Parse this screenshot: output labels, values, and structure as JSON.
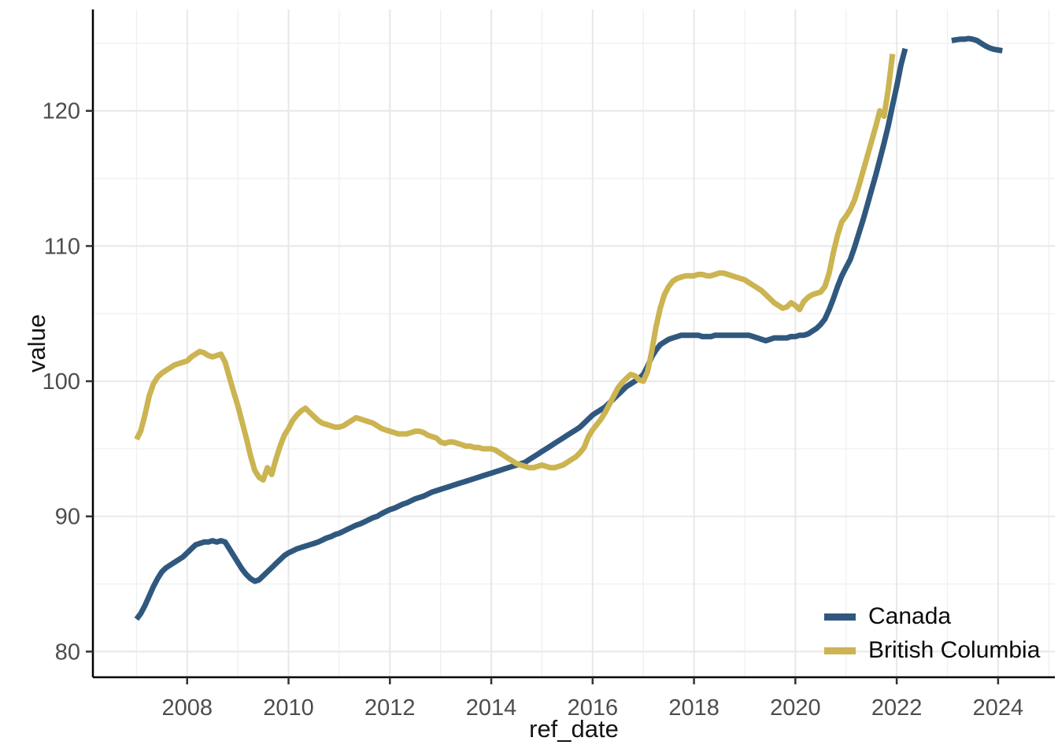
{
  "figure": {
    "background": "#FFFFFF",
    "panel_background": "#FFFFFF",
    "grid_major_color": "#E8E8E8",
    "grid_minor_color": "#F0F0F0",
    "axis_line_color": "#000000",
    "tick_mark_color": "#333333",
    "tick_label_color": "#4D4D4D",
    "title_color": "#141414"
  },
  "axes": {
    "x": {
      "title": "ref_date",
      "tick_labels": [
        "2008",
        "2010",
        "2012",
        "2014",
        "2016",
        "2018",
        "2020",
        "2022",
        "2024"
      ],
      "tick_values": [
        2008,
        2010,
        2012,
        2014,
        2016,
        2018,
        2020,
        2022,
        2024
      ],
      "minor_values": [
        2007,
        2009,
        2011,
        2013,
        2015,
        2017,
        2019,
        2021,
        2023,
        2025
      ]
    },
    "y": {
      "title": "value",
      "tick_labels": [
        "80",
        "90",
        "100",
        "110",
        "120"
      ],
      "tick_values": [
        80,
        90,
        100,
        110,
        120
      ],
      "minor_values": [
        85,
        95,
        105,
        115,
        125
      ]
    }
  },
  "legend": {
    "position": "inside bottom-right",
    "items": [
      {
        "label": "Canada",
        "color": "#30587F"
      },
      {
        "label": "British Columbia",
        "color": "#CBB451"
      }
    ]
  },
  "chart_data": {
    "type": "line",
    "title": "",
    "xlabel": "ref_date",
    "ylabel": "value",
    "x_domain": [
      2006.14,
      2025.12
    ],
    "y_domain": [
      78.1,
      127.5
    ],
    "grid": true,
    "x_unit": "monthly decimal years; each segment starts at start_year + (start_month-1)/12 and advances 1/12 per value",
    "legend_position": "inside bottom-right",
    "series": [
      {
        "name": "Canada",
        "color": "#30587F",
        "segments": [
          {
            "start_year": 2007,
            "start_month": 1,
            "values": [
              82.4,
              82.8,
              83.4,
              84.1,
              84.8,
              85.4,
              85.9,
              86.2,
              86.4,
              86.6,
              86.8,
              87.0,
              87.3,
              87.6,
              87.9,
              88.0,
              88.1,
              88.1,
              88.2,
              88.1,
              88.2,
              88.1,
              87.6,
              87.1,
              86.6,
              86.1,
              85.7,
              85.4,
              85.2,
              85.3,
              85.6,
              85.9,
              86.2,
              86.5,
              86.8,
              87.1,
              87.3,
              87.45,
              87.6,
              87.7,
              87.8,
              87.9,
              88.0,
              88.1,
              88.25,
              88.4,
              88.5,
              88.65,
              88.75,
              88.9,
              89.05,
              89.2,
              89.35,
              89.45,
              89.6,
              89.75,
              89.9,
              90.0,
              90.2,
              90.35,
              90.5,
              90.6,
              90.75,
              90.9,
              91.0,
              91.15,
              91.3,
              91.4,
              91.5,
              91.65,
              91.8,
              91.9,
              92.0,
              92.1,
              92.2,
              92.3,
              92.4,
              92.5,
              92.6,
              92.7,
              92.8,
              92.9,
              93.0,
              93.1,
              93.2,
              93.3,
              93.4,
              93.5,
              93.6,
              93.7,
              93.8,
              93.9,
              94.0,
              94.2,
              94.4,
              94.6,
              94.8,
              95.0,
              95.2,
              95.4,
              95.6,
              95.8,
              96.0,
              96.2,
              96.4,
              96.6,
              96.9,
              97.2,
              97.5,
              97.7,
              97.9,
              98.1,
              98.4,
              98.7,
              99.0,
              99.3,
              99.6,
              99.8,
              100.0,
              100.2,
              100.5,
              101.1,
              101.8,
              102.3,
              102.7,
              102.9,
              103.1,
              103.2,
              103.3,
              103.4,
              103.4,
              103.4,
              103.4,
              103.4,
              103.3,
              103.3,
              103.3,
              103.4,
              103.4,
              103.4,
              103.4,
              103.4,
              103.4,
              103.4,
              103.4,
              103.4,
              103.3,
              103.2,
              103.1,
              103.0,
              103.1,
              103.2,
              103.2,
              103.2,
              103.2,
              103.3,
              103.3,
              103.4,
              103.4,
              103.5,
              103.7,
              103.9,
              104.2,
              104.6,
              105.3,
              106.1,
              107.0,
              107.8,
              108.4,
              109.0,
              109.9,
              110.9,
              111.9,
              113.0,
              114.1,
              115.2,
              116.4,
              117.6,
              118.9,
              120.4,
              121.8,
              123.4,
              124.6
            ]
          },
          {
            "start_year": 2023,
            "start_month": 2,
            "values": [
              125.2,
              125.25,
              125.3,
              125.3,
              125.35,
              125.3,
              125.2,
              125.0,
              124.8,
              124.65,
              124.55,
              124.5,
              124.45
            ]
          }
        ]
      },
      {
        "name": "British Columbia",
        "color": "#CBB451",
        "segments": [
          {
            "start_year": 2007,
            "start_month": 1,
            "values": [
              95.7,
              96.3,
              97.5,
              98.9,
              99.8,
              100.3,
              100.6,
              100.8,
              101.0,
              101.2,
              101.3,
              101.4,
              101.5,
              101.8,
              102.0,
              102.2,
              102.1,
              101.9,
              101.8,
              101.9,
              102.0,
              101.4,
              100.3,
              99.2,
              98.2,
              97.0,
              95.8,
              94.5,
              93.4,
              92.9,
              92.7,
              93.6,
              93.1,
              94.2,
              95.2,
              96.0,
              96.5,
              97.1,
              97.5,
              97.8,
              98.0,
              97.7,
              97.4,
              97.1,
              96.9,
              96.8,
              96.7,
              96.6,
              96.6,
              96.7,
              96.9,
              97.1,
              97.3,
              97.2,
              97.1,
              97.0,
              96.9,
              96.7,
              96.5,
              96.4,
              96.3,
              96.2,
              96.1,
              96.1,
              96.1,
              96.2,
              96.3,
              96.3,
              96.2,
              96.0,
              95.9,
              95.8,
              95.5,
              95.4,
              95.5,
              95.5,
              95.4,
              95.3,
              95.2,
              95.2,
              95.1,
              95.1,
              95.0,
              95.0,
              95.0,
              94.9,
              94.7,
              94.5,
              94.3,
              94.1,
              93.9,
              93.8,
              93.7,
              93.6,
              93.6,
              93.7,
              93.8,
              93.7,
              93.6,
              93.6,
              93.7,
              93.8,
              94.0,
              94.2,
              94.4,
              94.7,
              95.1,
              95.9,
              96.4,
              96.8,
              97.2,
              97.7,
              98.3,
              98.9,
              99.5,
              99.9,
              100.2,
              100.5,
              100.4,
              100.1,
              100.0,
              100.7,
              102.2,
              104.0,
              105.4,
              106.4,
              107.0,
              107.4,
              107.6,
              107.7,
              107.8,
              107.8,
              107.8,
              107.9,
              107.9,
              107.8,
              107.8,
              107.9,
              108.0,
              108.0,
              107.9,
              107.8,
              107.7,
              107.6,
              107.5,
              107.3,
              107.1,
              106.9,
              106.7,
              106.4,
              106.1,
              105.8,
              105.6,
              105.4,
              105.5,
              105.8,
              105.6,
              105.3,
              105.9,
              106.2,
              106.4,
              106.5,
              106.6,
              107.0,
              108.0,
              109.5,
              110.8,
              111.8,
              112.2,
              112.7,
              113.4,
              114.4,
              115.5,
              116.6,
              117.7,
              118.8,
              120.0,
              119.6,
              121.6,
              124.2
            ]
          }
        ]
      }
    ]
  }
}
